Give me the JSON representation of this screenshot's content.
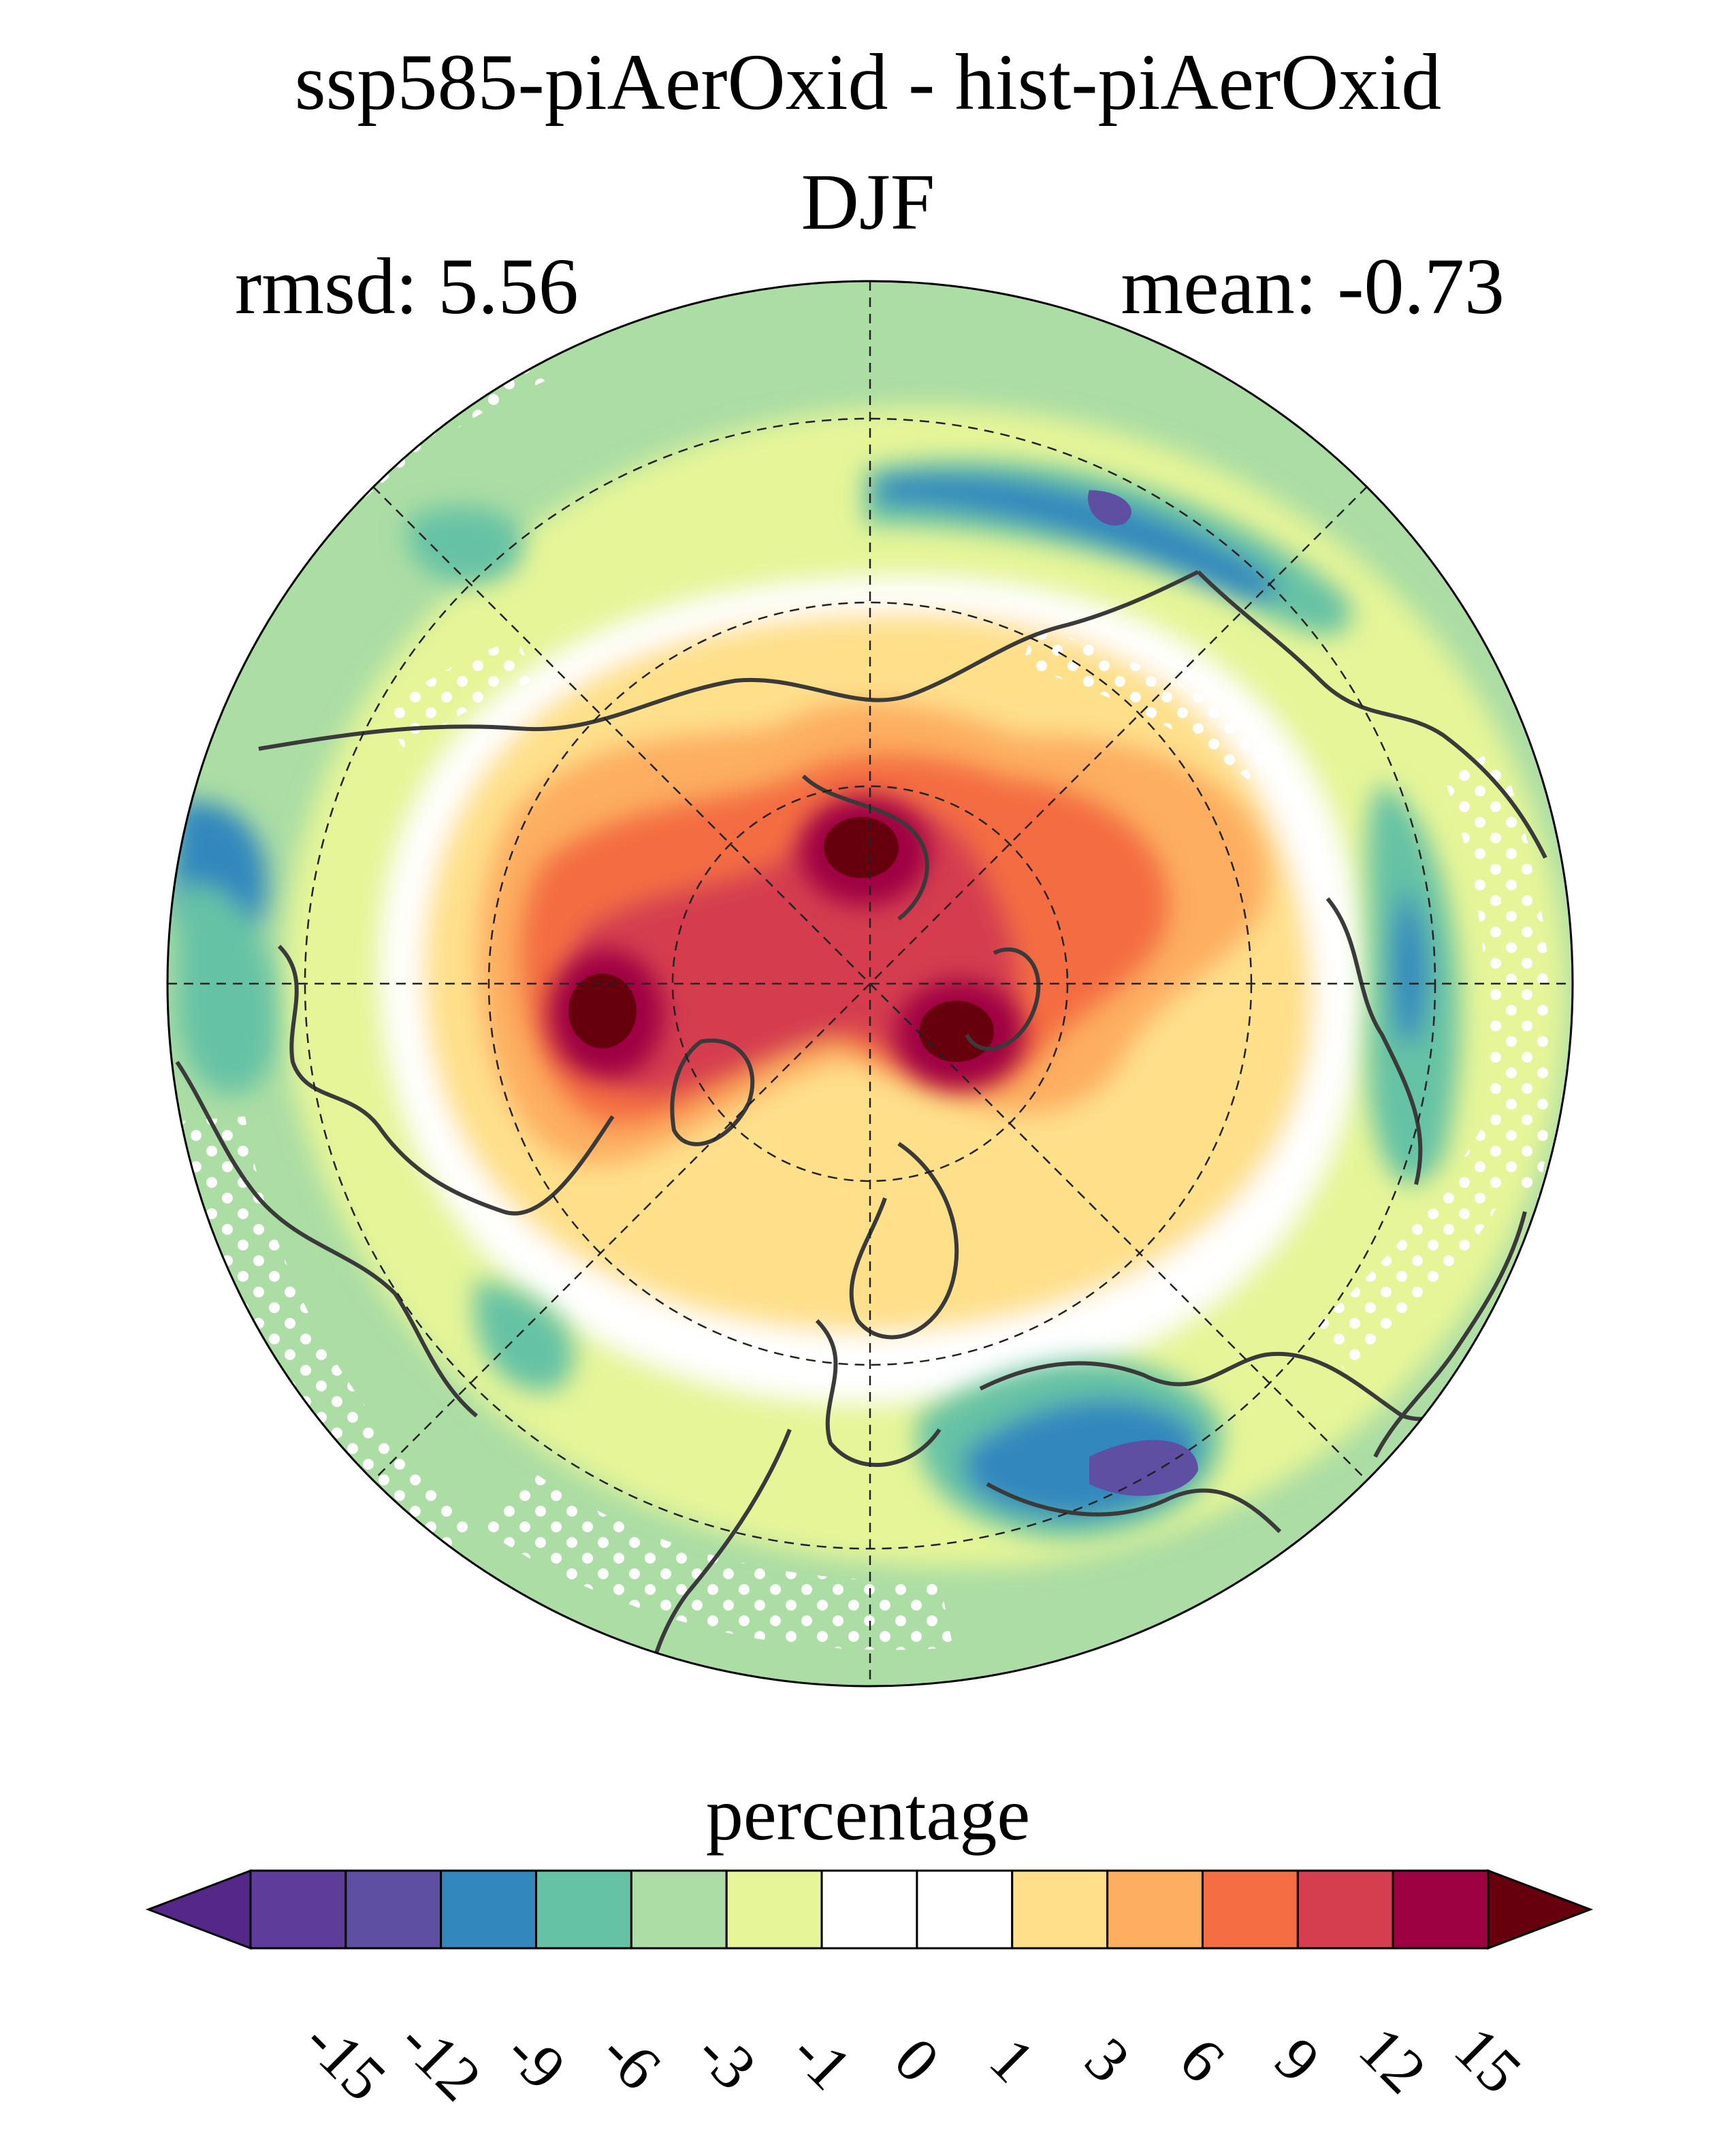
{
  "header": {
    "title_line1": "ssp585-piAerOxid - hist-piAerOxid",
    "title_line2": "DJF",
    "rmsd": "rmsd: 5.56",
    "mean": "mean: -0.73"
  },
  "colorbar": {
    "label": "percentage",
    "tick_labels": [
      "-15",
      "-12",
      "-9",
      "-6",
      "-3",
      "-1",
      "0",
      "1",
      "3",
      "6",
      "9",
      "12",
      "15"
    ],
    "colors": [
      "#5e3c99",
      "#5e4fa2",
      "#3288bd",
      "#66c2a5",
      "#abdda4",
      "#e6f598",
      "#ffffff",
      "#ffffff",
      "#fee08b",
      "#fdae61",
      "#f46d43",
      "#d53e4f",
      "#9e0142"
    ],
    "extend_low_color": "#542788",
    "extend_high_color": "#67000d"
  },
  "map": {
    "projection": "north-polar-stereographic",
    "stippling_color": "#ffffff",
    "coastline_color": "#3a3a3a",
    "gridline_color": "#222222"
  }
}
